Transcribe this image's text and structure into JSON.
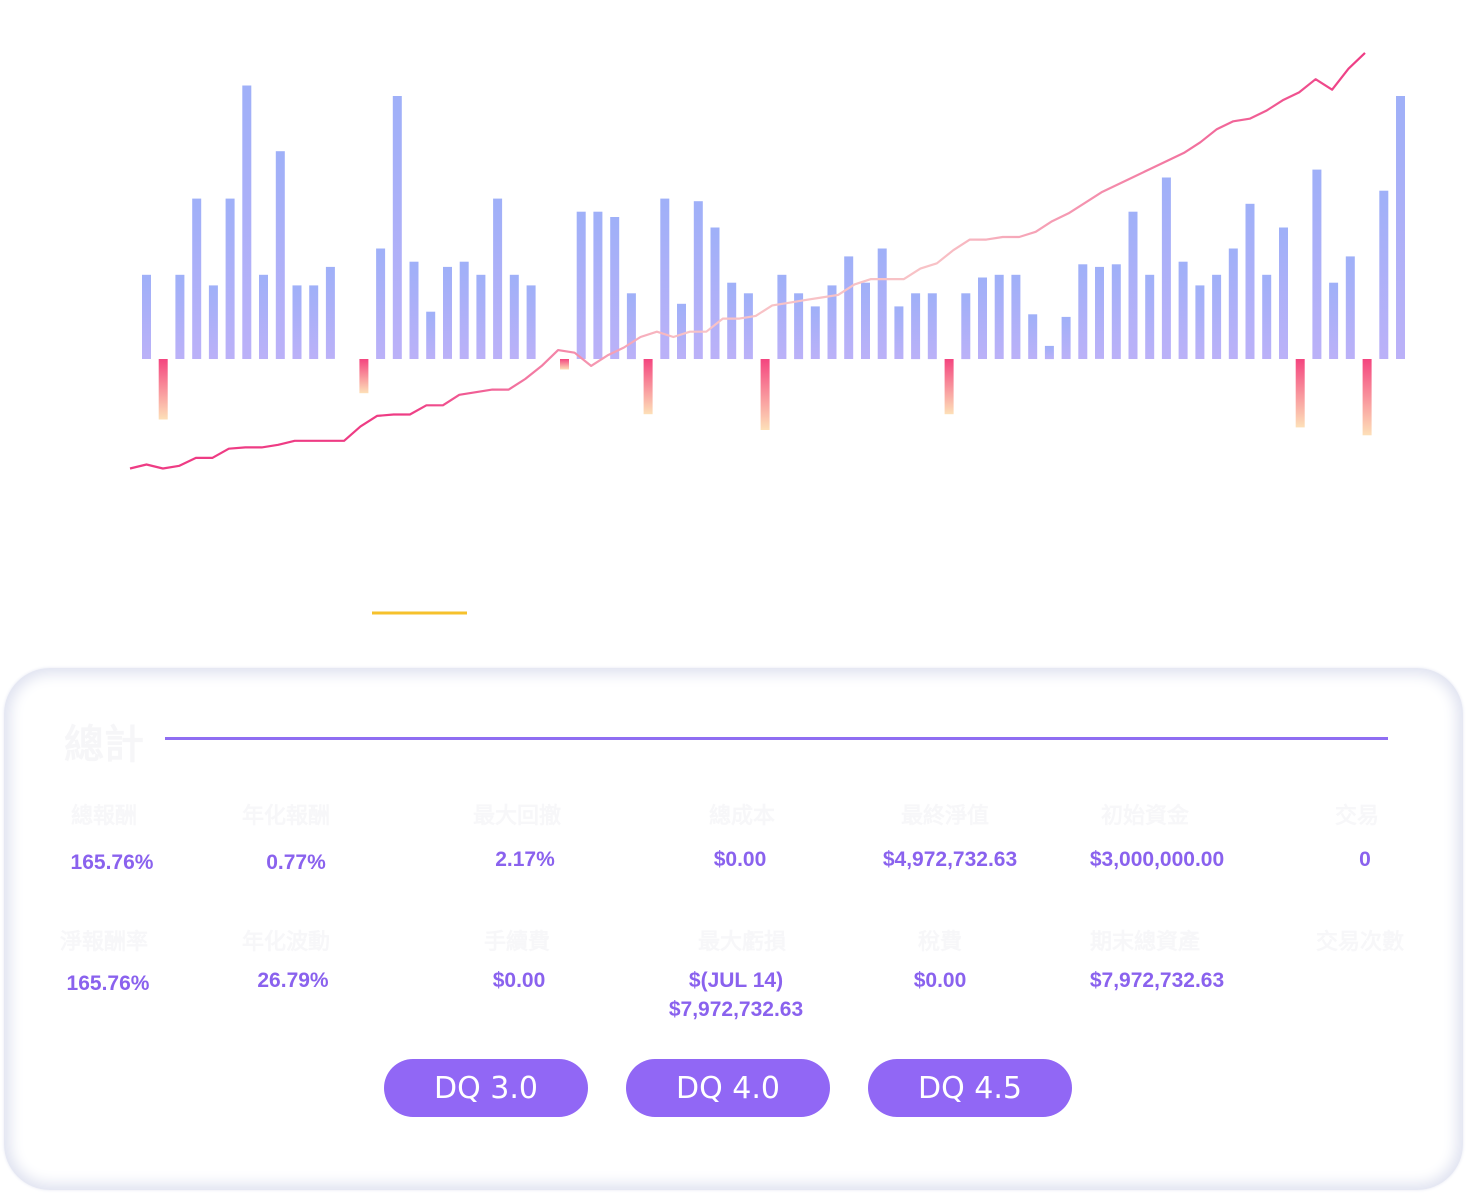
{
  "chart_data": {
    "type": "bar",
    "bars": [
      3.2,
      -2.3,
      3.2,
      6.1,
      2.8,
      6.1,
      10.4,
      3.2,
      7.9,
      2.8,
      2.8,
      3.5,
      0,
      -1.3,
      4.2,
      10.0,
      3.7,
      1.8,
      3.5,
      3.7,
      3.2,
      6.1,
      3.2,
      2.8,
      0,
      -0.4,
      5.6,
      5.6,
      5.4,
      2.5,
      -2.1,
      6.1,
      2.1,
      6.0,
      5.0,
      2.9,
      2.5,
      -2.7,
      3.2,
      2.5,
      2.0,
      2.8,
      3.9,
      2.9,
      4.2,
      2.0,
      2.5,
      2.5,
      -2.1,
      2.5,
      3.1,
      3.2,
      3.2,
      1.7,
      0.5,
      1.6,
      3.6,
      3.5,
      3.6,
      5.6,
      3.2,
      6.9,
      3.7,
      2.8,
      3.2,
      4.2,
      5.9,
      3.2,
      5.0,
      -2.6,
      7.2,
      2.9,
      3.9,
      -2.9,
      6.4,
      10.0
    ],
    "cumulative": [
      -4.2,
      -4.05,
      -4.2,
      -4.1,
      -3.8,
      -3.8,
      -3.45,
      -3.4,
      -3.4,
      -3.3,
      -3.15,
      -3.15,
      -3.15,
      -3.15,
      -2.6,
      -2.2,
      -2.15,
      -2.15,
      -1.8,
      -1.8,
      -1.4,
      -1.3,
      -1.2,
      -1.2,
      -0.8,
      -0.3,
      0.3,
      0.2,
      -0.3,
      0.1,
      0.4,
      0.8,
      1.0,
      0.8,
      1.0,
      1.0,
      1.5,
      1.5,
      1.6,
      2.0,
      2.1,
      2.2,
      2.3,
      2.4,
      2.8,
      3.0,
      3.0,
      3.0,
      3.4,
      3.6,
      4.1,
      4.5,
      4.5,
      4.6,
      4.6,
      4.8,
      5.2,
      5.5,
      5.9,
      6.3,
      6.6,
      6.9,
      7.2,
      7.5,
      7.8,
      8.2,
      8.7,
      9.0,
      9.1,
      9.4,
      9.8,
      10.1,
      10.6,
      10.2,
      11.0,
      11.6
    ],
    "legend": [
      {
        "name": "",
        "color": "#f6c12c"
      },
      {
        "name": "",
        "color": "#f5a0b8"
      }
    ],
    "colors": {
      "bar_top": "#9fb0f8",
      "bar_bottom": "#bbb1f8",
      "neg_top": "#f4457f",
      "neg_bottom": "#fde0b8",
      "line_start": "#ee3c84",
      "line_mid": "#f8c2c6",
      "line_end": "#ee3c84"
    }
  },
  "panel": {
    "title": "總計",
    "rows": [
      {
        "labels": [
          "總報酬",
          "年化報酬",
          "最大回撤",
          "總成本",
          "最終淨值",
          "初始資金",
          "交易"
        ],
        "values": [
          "165.76%",
          "0.77%",
          "2.17%",
          "$0.00",
          "$4,972,732.63",
          "$3,000,000.00",
          "0"
        ]
      },
      {
        "labels": [
          "淨報酬率",
          "年化波動",
          "手續費",
          "最大虧損",
          "稅費",
          "期末總資產",
          "交易次數"
        ],
        "values": [
          "165.76%",
          "26.79%",
          "$0.00",
          "$(JUL 14)\n$7,972,732.63",
          "$0.00",
          "$7,972,732.63",
          ""
        ]
      }
    ],
    "buttons": [
      "DQ 3.0",
      "DQ 4.0",
      "DQ 4.5"
    ]
  }
}
